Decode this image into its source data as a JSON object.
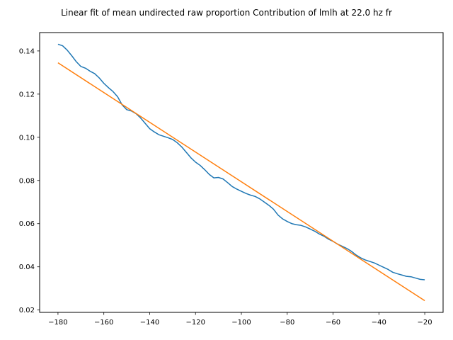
{
  "chart_data": {
    "type": "line",
    "title": "Linear fit of mean undirected raw proportion Contribution of lmlh at 22.0 hz fr",
    "xlabel": "",
    "ylabel": "",
    "xlim": [
      -188,
      -12
    ],
    "ylim": [
      0.0189,
      0.1485
    ],
    "xticks": [
      -180,
      -160,
      -140,
      -120,
      -100,
      -80,
      -60,
      -40,
      -20
    ],
    "xtick_labels": [
      "−180",
      "−160",
      "−140",
      "−120",
      "−100",
      "−80",
      "−60",
      "−40",
      "−20"
    ],
    "yticks": [
      0.02,
      0.04,
      0.06,
      0.08,
      0.1,
      0.12,
      0.14
    ],
    "ytick_labels": [
      "0.02",
      "0.04",
      "0.06",
      "0.08",
      "0.10",
      "0.12",
      "0.14"
    ],
    "grid": false,
    "legend": false,
    "series": [
      {
        "color": "#1f77b4",
        "x": [
          -180,
          -178,
          -176,
          -174,
          -172,
          -170,
          -168,
          -166,
          -164,
          -162,
          -160,
          -158,
          -156,
          -154,
          -152,
          -150,
          -148,
          -146,
          -144,
          -142,
          -140,
          -138,
          -136,
          -134,
          -132,
          -130,
          -128,
          -126,
          -124,
          -122,
          -120,
          -118,
          -116,
          -114,
          -112,
          -110,
          -108,
          -106,
          -104,
          -102,
          -100,
          -98,
          -96,
          -94,
          -92,
          -90,
          -88,
          -86,
          -84,
          -82,
          -80,
          -78,
          -76,
          -74,
          -72,
          -70,
          -68,
          -66,
          -64,
          -62,
          -60,
          -58,
          -56,
          -54,
          -52,
          -50,
          -48,
          -46,
          -44,
          -42,
          -40,
          -38,
          -36,
          -34,
          -32,
          -30,
          -28,
          -26,
          -24,
          -22,
          -20
        ],
        "y": [
          0.1431,
          0.1424,
          0.1404,
          0.1378,
          0.135,
          0.1328,
          0.132,
          0.1306,
          0.1295,
          0.1275,
          0.125,
          0.123,
          0.1212,
          0.1188,
          0.115,
          0.1128,
          0.1122,
          0.111,
          0.109,
          0.1065,
          0.104,
          0.1025,
          0.1012,
          0.1005,
          0.0998,
          0.099,
          0.0975,
          0.0955,
          0.093,
          0.0905,
          0.0885,
          0.087,
          0.085,
          0.0828,
          0.0812,
          0.0814,
          0.0807,
          0.079,
          0.0772,
          0.076,
          0.075,
          0.074,
          0.0732,
          0.0726,
          0.0715,
          0.07,
          0.0685,
          0.0667,
          0.064,
          0.0622,
          0.061,
          0.06,
          0.0595,
          0.0592,
          0.0585,
          0.0575,
          0.0565,
          0.0552,
          0.0542,
          0.0528,
          0.0518,
          0.0505,
          0.0495,
          0.0485,
          0.0472,
          0.0455,
          0.0442,
          0.0432,
          0.0425,
          0.0418,
          0.0408,
          0.0398,
          0.0388,
          0.0375,
          0.0368,
          0.0362,
          0.0356,
          0.0354,
          0.0348,
          0.0342,
          0.034
        ]
      },
      {
        "color": "#ff7f0e",
        "x": [
          -180,
          -20
        ],
        "y": [
          0.1345,
          0.0243
        ]
      }
    ]
  }
}
